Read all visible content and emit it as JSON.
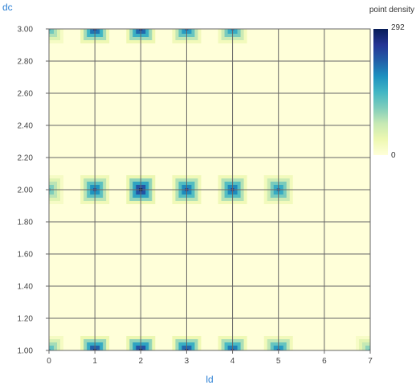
{
  "chart_data": {
    "type": "heatmap",
    "xlabel": "ld",
    "ylabel": "dc",
    "xlim": [
      0,
      7
    ],
    "ylim": [
      1.0,
      3.0
    ],
    "x_ticks": [
      "0",
      "1",
      "2",
      "3",
      "4",
      "5",
      "6",
      "7"
    ],
    "y_ticks": [
      "1.00",
      "1.20",
      "1.40",
      "1.60",
      "1.80",
      "2.00",
      "2.20",
      "2.40",
      "2.60",
      "2.80",
      "3.00"
    ],
    "grid": true,
    "colorbar": {
      "title": "point density",
      "min": 0,
      "max": 292,
      "min_label": "0",
      "max_label": "292",
      "colors": [
        "#ffffd9",
        "#edf8b1",
        "#c7e9b4",
        "#7fcdbb",
        "#41b6c4",
        "#1d91c0",
        "#225ea8",
        "#253494",
        "#081d58"
      ]
    },
    "background_color": "#ffffd9",
    "hotspots": [
      {
        "x": 0,
        "y": 3.0,
        "value": 150
      },
      {
        "x": 1,
        "y": 3.0,
        "value": 260
      },
      {
        "x": 2,
        "y": 3.0,
        "value": 270
      },
      {
        "x": 3,
        "y": 3.0,
        "value": 220
      },
      {
        "x": 4,
        "y": 3.0,
        "value": 200
      },
      {
        "x": 0,
        "y": 2.0,
        "value": 140
      },
      {
        "x": 1,
        "y": 2.0,
        "value": 230
      },
      {
        "x": 2,
        "y": 2.0,
        "value": 292
      },
      {
        "x": 3,
        "y": 2.0,
        "value": 240
      },
      {
        "x": 4,
        "y": 2.0,
        "value": 240
      },
      {
        "x": 5,
        "y": 2.0,
        "value": 200
      },
      {
        "x": 0,
        "y": 1.0,
        "value": 160
      },
      {
        "x": 1,
        "y": 1.0,
        "value": 280
      },
      {
        "x": 2,
        "y": 1.0,
        "value": 292
      },
      {
        "x": 3,
        "y": 1.0,
        "value": 270
      },
      {
        "x": 4,
        "y": 1.0,
        "value": 250
      },
      {
        "x": 5,
        "y": 1.0,
        "value": 220
      },
      {
        "x": 7,
        "y": 1.0,
        "value": 130
      }
    ]
  }
}
